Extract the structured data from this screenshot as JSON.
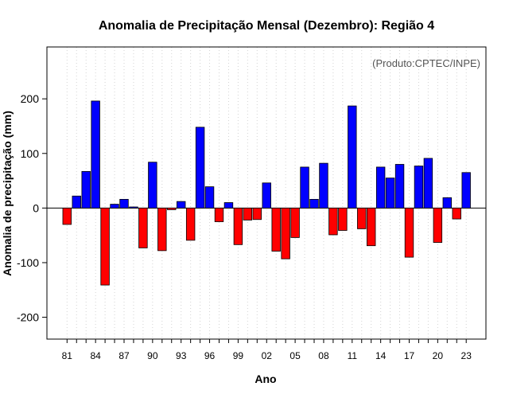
{
  "chart_data": {
    "type": "bar",
    "title": "Anomalia de Precipitação Mensal (Dezembro): Região 4",
    "xlabel": "Ano",
    "ylabel": "Anomalia de precipitação (mm)",
    "annotation": "(Produto:CPTEC/INPE)",
    "ylim": [
      -240,
      295
    ],
    "yticks": [
      -200,
      -100,
      0,
      100,
      200
    ],
    "xtick_labels": [
      "81",
      "84",
      "87",
      "90",
      "93",
      "96",
      "99",
      "02",
      "05",
      "08",
      "11",
      "14",
      "17",
      "20",
      "23"
    ],
    "xtick_years": [
      1981,
      1984,
      1987,
      1990,
      1993,
      1996,
      1999,
      2002,
      2005,
      2008,
      2011,
      2014,
      2017,
      2020,
      2023
    ],
    "colors": {
      "positive": "#0000ff",
      "negative": "#ff0000"
    },
    "categories": [
      1981,
      1982,
      1983,
      1984,
      1985,
      1986,
      1987,
      1988,
      1989,
      1990,
      1991,
      1992,
      1993,
      1994,
      1995,
      1996,
      1997,
      1998,
      1999,
      2000,
      2001,
      2002,
      2003,
      2004,
      2005,
      2006,
      2007,
      2008,
      2009,
      2010,
      2011,
      2012,
      2013,
      2014,
      2015,
      2016,
      2017,
      2018,
      2019,
      2020,
      2021,
      2022,
      2023
    ],
    "values": [
      -30,
      22,
      67,
      196,
      -141,
      7,
      16,
      2,
      -73,
      84,
      -78,
      -3,
      12,
      -59,
      148,
      39,
      -25,
      10,
      -67,
      -22,
      -21,
      46,
      -79,
      -93,
      -54,
      75,
      16,
      82,
      -49,
      -41,
      187,
      -38,
      -69,
      75,
      55,
      80,
      -90,
      77,
      91,
      -63,
      19,
      -20,
      65
    ]
  }
}
